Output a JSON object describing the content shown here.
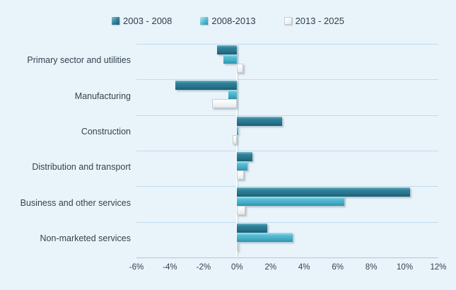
{
  "colors": {
    "background": "#e9f3fa",
    "gridline": "#bedced",
    "axis_line": "#a9cbdf",
    "text": "#33434f",
    "series_2003_2008": "#2f8098",
    "series_2008_2013": "#4fb6ce",
    "series_2013_2025": "#ffffff"
  },
  "legend": {
    "items": [
      {
        "label": "2003 - 2008",
        "swatch": "dark-teal-swatch"
      },
      {
        "label": "2008-2013",
        "swatch": "light-teal-swatch"
      },
      {
        "label": "2013 - 2025",
        "swatch": "white-swatch"
      }
    ]
  },
  "chart_data": {
    "type": "bar",
    "orientation": "horizontal",
    "title": "",
    "xlabel": "",
    "ylabel": "",
    "categories": [
      "Primary sector and utilities",
      "Manufacturing",
      "Construction",
      "Distribution and transport",
      "Business and other services",
      "Non-marketed services"
    ],
    "series": [
      {
        "name": "2003 - 2008",
        "values": [
          -1.2,
          -3.7,
          2.7,
          0.9,
          10.3,
          1.8
        ]
      },
      {
        "name": "2008-2013",
        "values": [
          -0.8,
          -0.5,
          0.0,
          0.6,
          6.4,
          3.3
        ]
      },
      {
        "name": "2013 - 2025",
        "values": [
          0.35,
          -1.5,
          -0.25,
          0.4,
          0.5,
          0.0
        ]
      }
    ],
    "xlim": [
      -6,
      12
    ],
    "xticks": [
      -6,
      -4,
      -2,
      0,
      2,
      4,
      6,
      8,
      10,
      12
    ],
    "xtick_labels": [
      "-6%",
      "-4%",
      "-2%",
      "0%",
      "2%",
      "4%",
      "6%",
      "8%",
      "10%",
      "12%"
    ],
    "grid": "horizontal-row-separators",
    "legend_position": "top-center"
  }
}
